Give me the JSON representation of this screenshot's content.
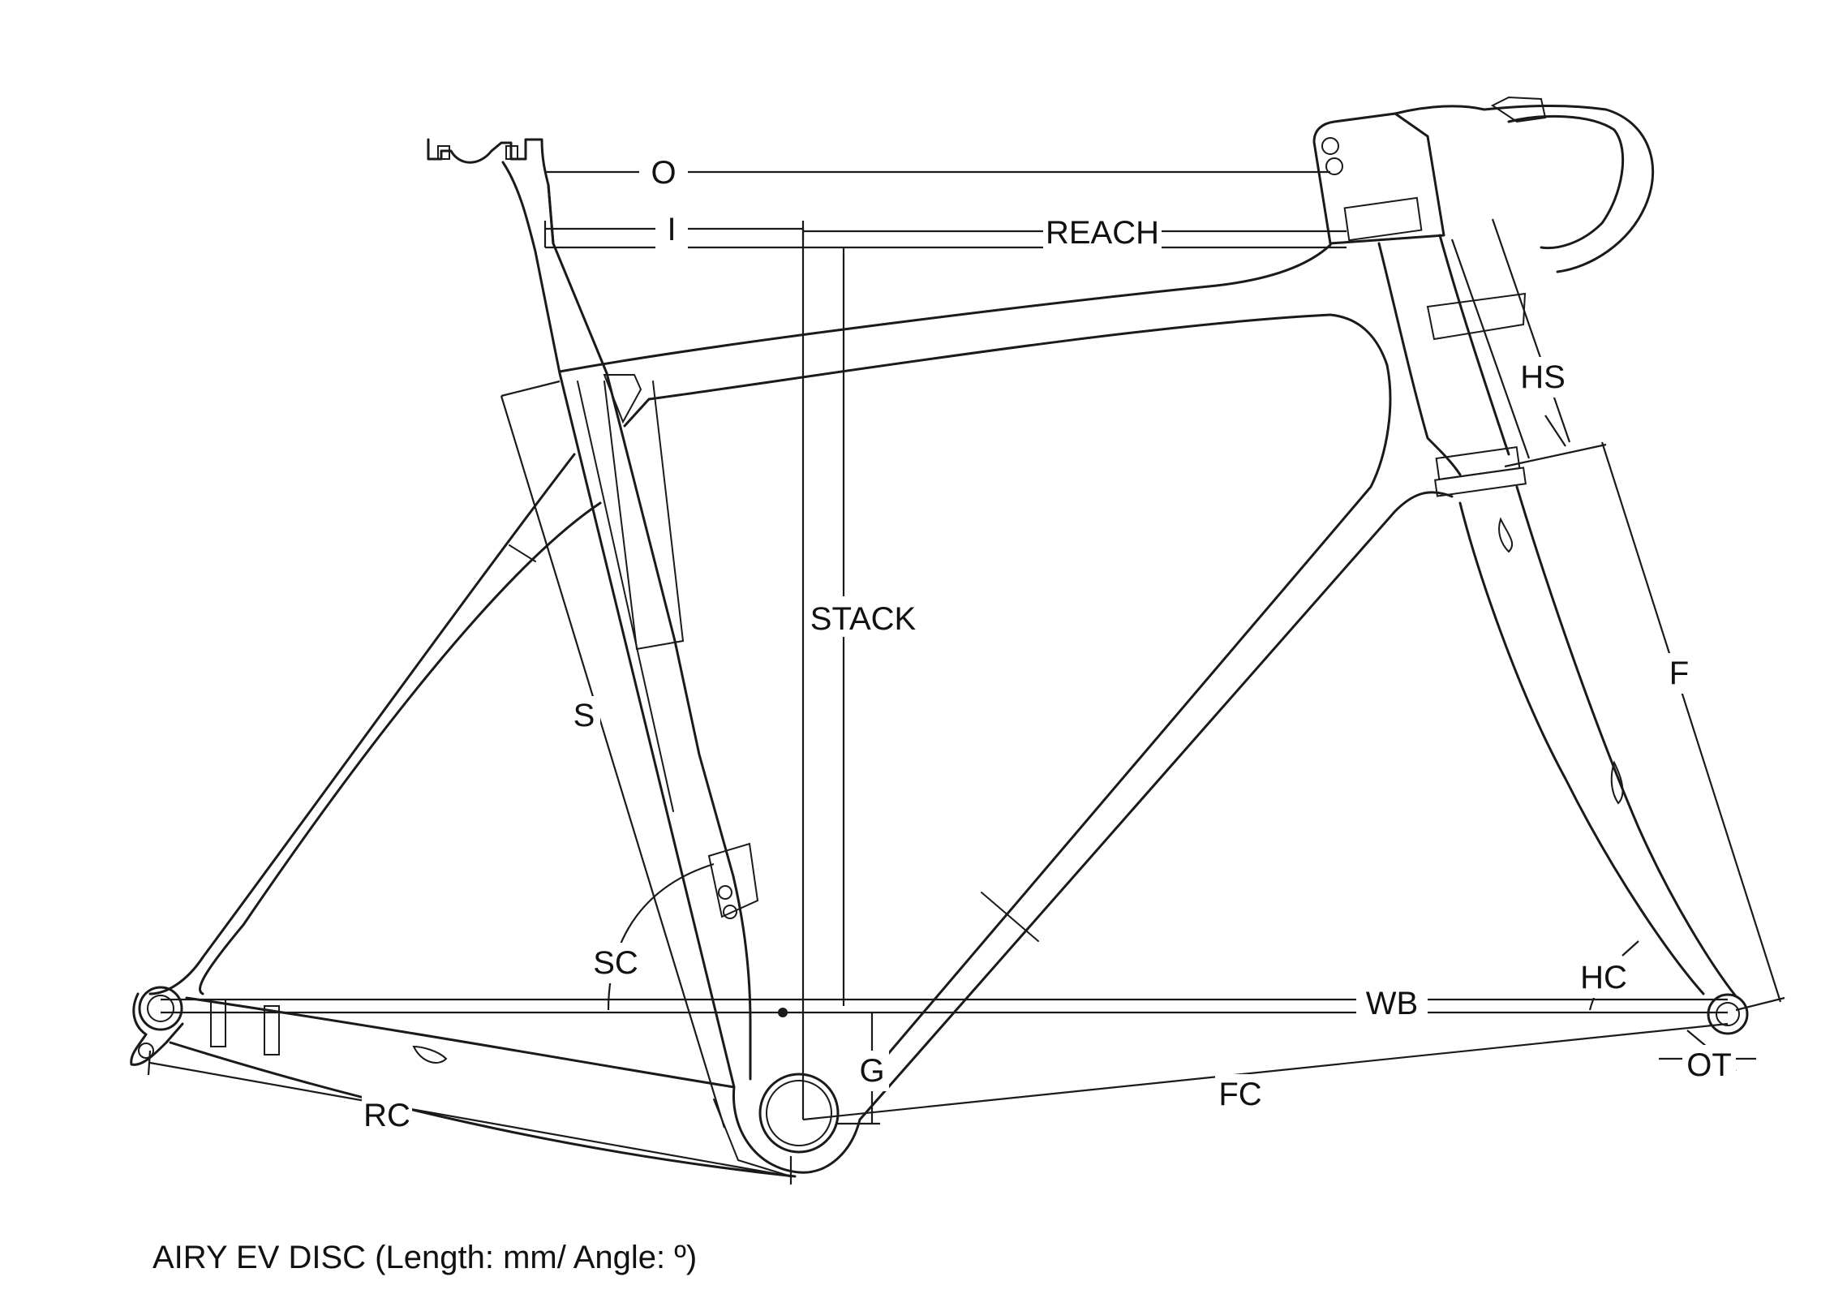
{
  "caption": "AIRY EV DISC (Length: mm/ Angle: º)",
  "labels": {
    "O": "O",
    "I": "I",
    "REACH": "REACH",
    "STACK": "STACK",
    "HS": "HS",
    "F": "F",
    "S": "S",
    "SC": "SC",
    "WB": "WB",
    "HC": "HC",
    "G": "G",
    "RC": "RC",
    "FC": "FC",
    "OT": "OT"
  }
}
